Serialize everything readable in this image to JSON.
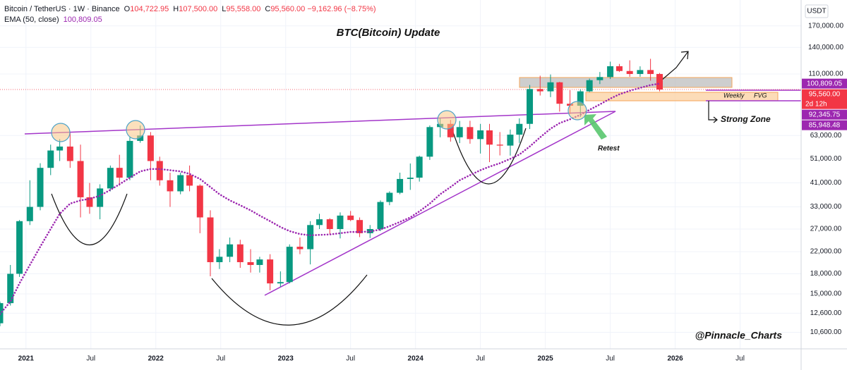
{
  "chart_data": {
    "type": "candlestick",
    "title": "BTC(Bitcoin) Update",
    "symbol": "Bitcoin / TetherUS · 1W · Binance",
    "ohlc": [
      {
        "label": "O",
        "value": "104,722.95"
      },
      {
        "label": "H",
        "value": "107,500.00"
      },
      {
        "label": "L",
        "value": "95,558.00"
      },
      {
        "label": "C",
        "value": "95,560.00"
      }
    ],
    "change": "−9,162.96 (−8.75%)",
    "ema_label": "EMA (50, close)",
    "ema_value": "100,809.05",
    "currency": "USDT",
    "x": [
      2020.8,
      2020.88,
      2020.95,
      2021.03,
      2021.11,
      2021.19,
      2021.26,
      2021.34,
      2021.42,
      2021.49,
      2021.57,
      2021.65,
      2021.72,
      2021.8,
      2021.88,
      2021.96,
      2022.03,
      2022.11,
      2022.19,
      2022.26,
      2022.34,
      2022.42,
      2022.49,
      2022.57,
      2022.65,
      2022.73,
      2022.8,
      2022.88,
      2022.96,
      2023.03,
      2023.11,
      2023.19,
      2023.26,
      2023.34,
      2023.42,
      2023.5,
      2023.57,
      2023.65,
      2023.73,
      2023.8,
      2023.88,
      2023.96,
      2024.03,
      2024.11,
      2024.19,
      2024.27,
      2024.34,
      2024.42,
      2024.5,
      2024.57,
      2024.65,
      2024.73,
      2024.8,
      2024.88,
      2024.96,
      2025.04,
      2025.11,
      2025.19,
      2025.27,
      2025.34,
      2025.42,
      2025.5,
      2025.57,
      2025.65,
      2025.73,
      2025.81,
      2025.88
    ],
    "open": [
      11500,
      13800,
      18000,
      29000,
      33000,
      47000,
      55000,
      57000,
      50000,
      36000,
      33000,
      39000,
      47000,
      43000,
      60000,
      63000,
      50000,
      42000,
      38000,
      44000,
      40000,
      30000,
      20000,
      21000,
      23500,
      20000,
      19500,
      20500,
      16500,
      16700,
      23000,
      22500,
      28000,
      29500,
      27000,
      30500,
      29300,
      26000,
      27000,
      34500,
      37500,
      42500,
      43000,
      52000,
      68000,
      70000,
      62000,
      68000,
      61000,
      66000,
      58000,
      57500,
      63500,
      70000,
      96000,
      94000,
      102000,
      84000,
      82500,
      94000,
      104000,
      107000,
      118000,
      113000,
      110000,
      114000,
      110000
    ],
    "high": [
      14000,
      19500,
      29300,
      42000,
      49000,
      58000,
      61000,
      64800,
      58000,
      41000,
      40500,
      48000,
      52900,
      62000,
      69000,
      65000,
      52000,
      45000,
      45000,
      48000,
      40500,
      32000,
      22500,
      25000,
      24500,
      22500,
      21000,
      21500,
      18400,
      23500,
      25000,
      29000,
      31000,
      29800,
      31400,
      31800,
      30000,
      28000,
      35000,
      38000,
      45000,
      48900,
      52500,
      69000,
      73800,
      72500,
      71900,
      72000,
      70000,
      70000,
      65000,
      66500,
      73600,
      99600,
      108300,
      109500,
      102500,
      95000,
      95700,
      105500,
      112000,
      123000,
      120500,
      124500,
      117900,
      126200,
      111000
    ],
    "low": [
      11200,
      13500,
      17500,
      28000,
      32000,
      44000,
      50000,
      47000,
      30000,
      31000,
      29500,
      38000,
      40000,
      42000,
      59000,
      42000,
      40000,
      33000,
      37000,
      38000,
      26000,
      17600,
      18800,
      20000,
      19000,
      18200,
      18200,
      15500,
      16000,
      16500,
      21500,
      19600,
      27000,
      25800,
      24800,
      29000,
      25100,
      24900,
      26500,
      33500,
      37000,
      38500,
      41500,
      50500,
      62000,
      59600,
      58800,
      58500,
      53500,
      49500,
      52600,
      52500,
      58900,
      66800,
      90500,
      89200,
      78200,
      76600,
      74500,
      93400,
      100400,
      105100,
      112000,
      107300,
      107300,
      103500,
      94000
    ],
    "close": [
      13800,
      18000,
      29000,
      33000,
      47000,
      55000,
      57000,
      50000,
      36000,
      33000,
      39000,
      47000,
      43000,
      60000,
      63000,
      50000,
      42000,
      38000,
      44000,
      40000,
      30000,
      20000,
      21000,
      23500,
      20000,
      19500,
      20500,
      16500,
      16700,
      23000,
      22500,
      28000,
      29500,
      27000,
      30500,
      29300,
      26000,
      27000,
      34500,
      37500,
      42500,
      43000,
      52000,
      68000,
      70000,
      62000,
      68000,
      61000,
      66000,
      58000,
      57500,
      63500,
      70000,
      96000,
      94000,
      102000,
      84000,
      82500,
      94000,
      104000,
      107000,
      118000,
      113000,
      110000,
      114000,
      110000,
      95560
    ],
    "ema": [
      12500,
      14000,
      16500,
      19500,
      23000,
      27000,
      31000,
      34000,
      35000,
      35500,
      36500,
      38500,
      40500,
      43000,
      45500,
      46500,
      46500,
      46000,
      45500,
      44500,
      42500,
      39500,
      37000,
      35000,
      33500,
      32000,
      30500,
      29000,
      27500,
      26500,
      25800,
      25500,
      25600,
      25700,
      26000,
      26300,
      26300,
      26400,
      26900,
      27700,
      28800,
      30000,
      31700,
      34000,
      37000,
      39500,
      42000,
      44000,
      46000,
      47500,
      49000,
      51000,
      53000,
      57000,
      62000,
      67000,
      70500,
      73000,
      76000,
      79500,
      83500,
      88000,
      91500,
      94500,
      97000,
      99500,
      100809
    ],
    "up_color": "#089981",
    "down_color": "#f23645",
    "ema_color": "#9c27b0",
    "log_scale": true,
    "ylim": [
      9120,
      215000
    ],
    "yticks": [
      {
        "value": 10600,
        "label": "10,600.00"
      },
      {
        "value": 12600,
        "label": "12,600.00"
      },
      {
        "value": 15000,
        "label": "15,000.00"
      },
      {
        "value": 18000,
        "label": "18,000.00"
      },
      {
        "value": 22000,
        "label": "22,000.00"
      },
      {
        "value": 27000,
        "label": "27,000.00"
      },
      {
        "value": 33000,
        "label": "33,000.00"
      },
      {
        "value": 41000,
        "label": "41,000.00"
      },
      {
        "value": 51000,
        "label": "51,000.00"
      },
      {
        "value": 63000,
        "label": "63,000.00"
      },
      {
        "value": 110000,
        "label": "110,000.00"
      },
      {
        "value": 140000,
        "label": "140,000.00"
      },
      {
        "value": 170000,
        "label": "170,000.00"
      }
    ],
    "xlim": [
      2020.8,
      2026.97
    ],
    "xticks": [
      2021,
      {
        "value": 2021.5,
        "label": "Jul"
      },
      2022,
      {
        "value": 2022.5,
        "label": "Jul"
      },
      2023,
      {
        "value": 2023.5,
        "label": "Jul"
      },
      2024,
      {
        "value": 2024.5,
        "label": "Jul"
      },
      2025,
      {
        "value": 2025.5,
        "label": "Jul"
      },
      2026,
      {
        "value": 2026.5,
        "label": "Jul"
      }
    ],
    "price_tags": [
      {
        "value": 100809.05,
        "label": "100,809.05",
        "color": "#9c27b0"
      },
      {
        "value": 95560,
        "label": "95,560.00",
        "sub": "2d 12h",
        "color": "#f23645"
      },
      {
        "value": 92345.75,
        "label": "92,345.75",
        "color": "#9c27b0"
      },
      {
        "value": 85948.48,
        "label": "85,948.48",
        "color": "#9c27b0"
      }
    ],
    "annotations": {
      "weekly": "Weekly",
      "fvg": "FVG",
      "strong_zone": "Strong Zone",
      "retest": "Retest",
      "author": "@Pinnacle_Charts"
    }
  }
}
